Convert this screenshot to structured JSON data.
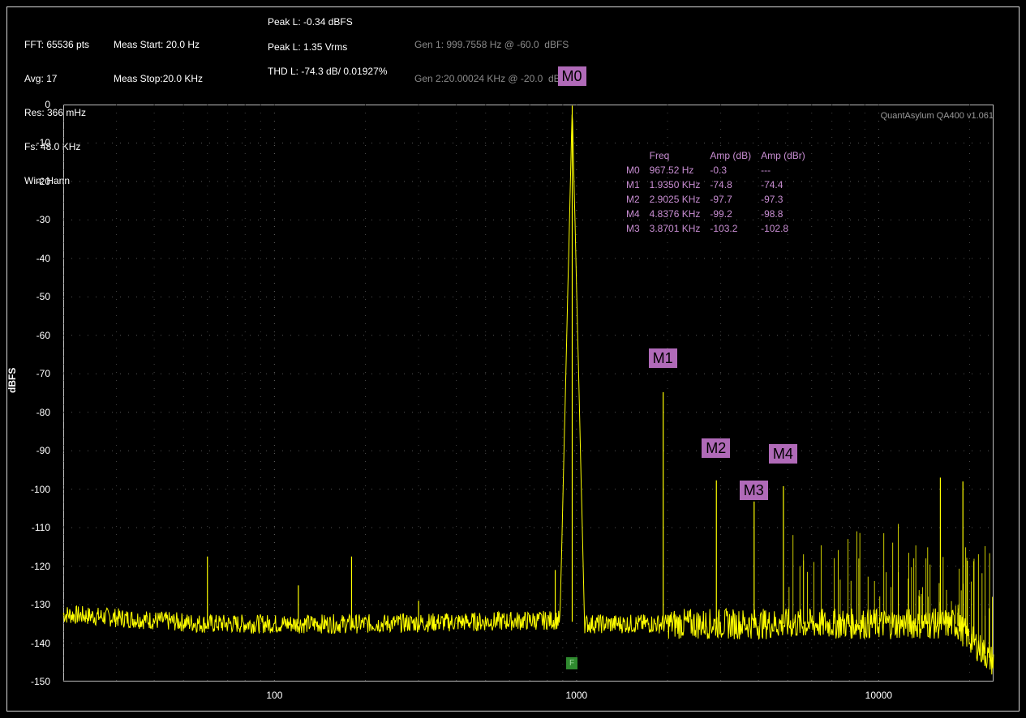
{
  "header": {
    "fft": "FFT: 65536 pts",
    "avg": "Avg: 17",
    "res": "Res: 366 mHz",
    "fs": "Fs: 48.0 KHz",
    "win": "Win: Hann",
    "meas_start": "Meas Start: 20.0 Hz",
    "meas_stop": "Meas Stop:20.0 KHz",
    "peak_dbfs": "Peak L: -0.34 dBFS",
    "peak_vrms": "Peak L: 1.35 Vrms",
    "thd": "THD L: -74.3 dB/ 0.01927%",
    "gen1": "Gen 1: 999.7558 Hz @ -60.0  dBFS",
    "gen2": "Gen 2:20.00024 KHz @ -20.0  dBFS"
  },
  "watermark": "QuantAsylum QA400 v1.061",
  "marker_table": {
    "headers": [
      "",
      "Freq",
      "Amp (dB)",
      "Amp (dBr)"
    ],
    "rows": [
      [
        "M0",
        "967.52 Hz",
        "-0.3",
        "---"
      ],
      [
        "M1",
        "1.9350 KHz",
        "-74.8",
        "-74.4"
      ],
      [
        "M2",
        "2.9025 KHz",
        "-97.7",
        "-97.3"
      ],
      [
        "M4",
        "4.8376 KHz",
        "-99.2",
        "-98.8"
      ],
      [
        "M3",
        "3.8701 KHz",
        "-103.2",
        "-102.8"
      ]
    ]
  },
  "f_marker": "F",
  "chart_data": {
    "type": "line",
    "title": "",
    "xlabel": "",
    "ylabel": "dBFS",
    "xscale": "log",
    "xlim": [
      20,
      24000
    ],
    "ylim": [
      -150,
      0
    ],
    "x_ticks": [
      "100",
      "1000",
      "10000"
    ],
    "y_ticks": [
      "0",
      "-10",
      "-20",
      "-30",
      "-40",
      "-50",
      "-60",
      "-70",
      "-80",
      "-90",
      "-100",
      "-110",
      "-120",
      "-130",
      "-140",
      "-150"
    ],
    "grid": true,
    "series_color": "#ffff00",
    "noise_floor": [
      {
        "x": 20,
        "y": -132.5
      },
      {
        "x": 60,
        "y": -135
      },
      {
        "x": 200,
        "y": -135
      },
      {
        "x": 900,
        "y": -134
      },
      {
        "x": 1050,
        "y": -135
      },
      {
        "x": 18000,
        "y": -135
      },
      {
        "x": 24000,
        "y": -145
      }
    ],
    "peaks": [
      {
        "x": 967.52,
        "y": -0.3
      },
      {
        "x": 1935.0,
        "y": -74.8
      },
      {
        "x": 2902.5,
        "y": -97.7
      },
      {
        "x": 3870.1,
        "y": -103.2
      },
      {
        "x": 4837.6,
        "y": -99.2
      },
      {
        "x": 60,
        "y": -117.5
      },
      {
        "x": 180,
        "y": -117.5
      },
      {
        "x": 120,
        "y": -125
      },
      {
        "x": 300,
        "y": -129
      },
      {
        "x": 850,
        "y": -121
      },
      {
        "x": 16000,
        "y": -97
      },
      {
        "x": 19000,
        "y": -98
      }
    ],
    "markers": [
      {
        "label": "M0",
        "x": 967.52,
        "y": -0.3
      },
      {
        "label": "M1",
        "x": 1935.0,
        "y": -74.8
      },
      {
        "label": "M2",
        "x": 2902.5,
        "y": -97.7
      },
      {
        "label": "M3",
        "x": 3870.1,
        "y": -103.2
      },
      {
        "label": "M4",
        "x": 4837.6,
        "y": -99.2
      }
    ]
  }
}
